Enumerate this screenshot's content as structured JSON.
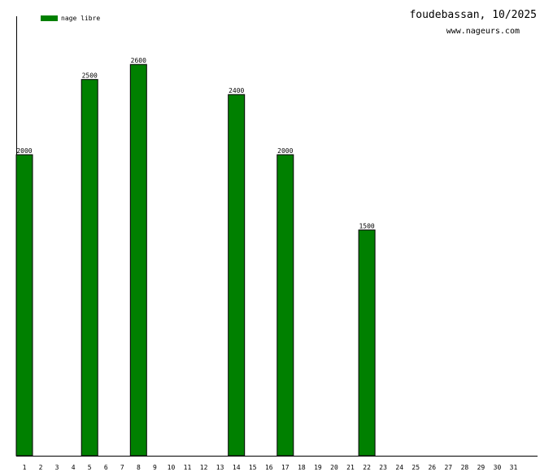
{
  "chart_data": {
    "type": "bar",
    "title": "foudebassan, 10/2025",
    "subtitle": "www.nageurs.com",
    "categories": [
      "1",
      "2",
      "3",
      "4",
      "5",
      "6",
      "7",
      "8",
      "9",
      "10",
      "11",
      "12",
      "13",
      "14",
      "15",
      "16",
      "17",
      "18",
      "19",
      "20",
      "21",
      "22",
      "23",
      "24",
      "25",
      "26",
      "27",
      "28",
      "29",
      "30",
      "31"
    ],
    "series": [
      {
        "name": "nage libre",
        "color": "#008000",
        "values": [
          2000,
          0,
          0,
          0,
          2500,
          0,
          0,
          2600,
          0,
          0,
          0,
          0,
          0,
          2400,
          0,
          0,
          2000,
          0,
          0,
          0,
          0,
          1500,
          0,
          0,
          0,
          0,
          0,
          0,
          0,
          0,
          0
        ]
      }
    ],
    "ylim": [
      0,
      2920
    ],
    "grid": false,
    "legend": "top-left"
  }
}
